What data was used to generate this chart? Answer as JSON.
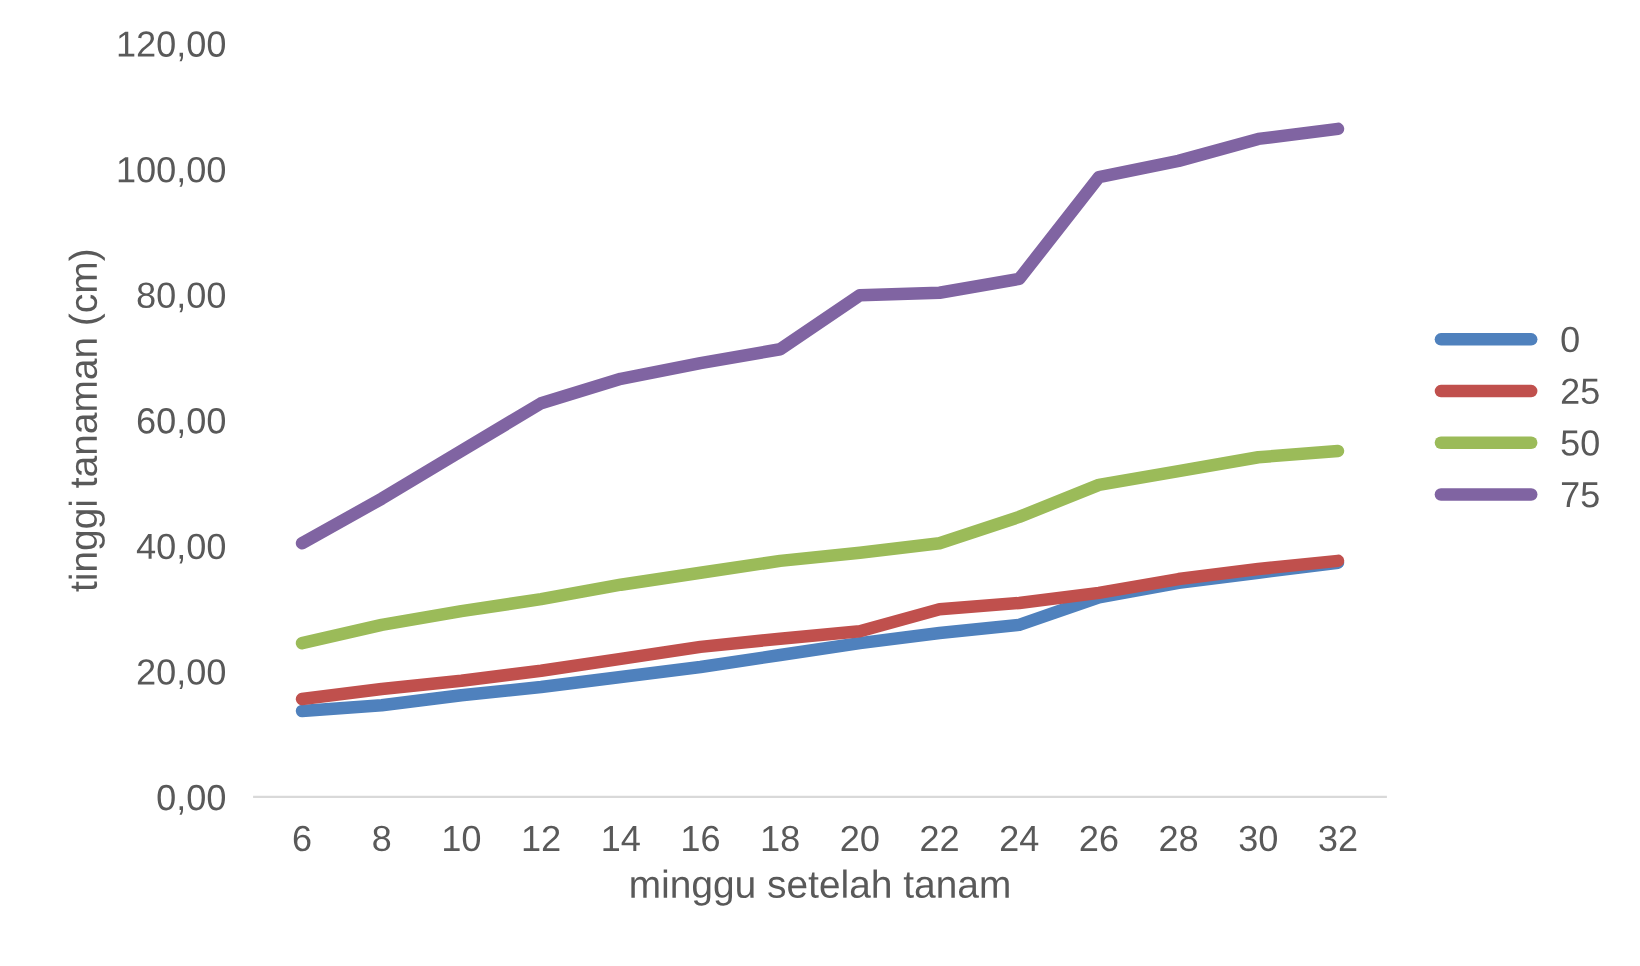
{
  "chart_data": {
    "type": "line",
    "xlabel": "minggu setelah tanam",
    "ylabel": "tinggi tanaman (cm)",
    "categories": [
      "6",
      "8",
      "10",
      "12",
      "14",
      "16",
      "18",
      "20",
      "22",
      "24",
      "26",
      "28",
      "30",
      "32"
    ],
    "series": [
      {
        "name": "0",
        "color": "#4f81bd",
        "values": [
          13.7,
          14.6,
          16.2,
          17.5,
          19.1,
          20.7,
          22.6,
          24.5,
          26.1,
          27.4,
          31.8,
          34.1,
          35.7,
          37.3
        ]
      },
      {
        "name": "25",
        "color": "#c0504d",
        "values": [
          15.6,
          17.2,
          18.5,
          20.1,
          22.0,
          23.9,
          25.2,
          26.4,
          29.9,
          30.9,
          32.5,
          34.7,
          36.3,
          37.6
        ]
      },
      {
        "name": "50",
        "color": "#9bbb59",
        "values": [
          24.5,
          27.4,
          29.6,
          31.5,
          33.8,
          35.7,
          37.6,
          38.9,
          40.4,
          44.6,
          49.7,
          51.9,
          54.1,
          55.1
        ]
      },
      {
        "name": "75",
        "color": "#8064a2",
        "values": [
          40.4,
          47.5,
          55.1,
          62.7,
          66.6,
          69.1,
          71.3,
          79.9,
          80.3,
          82.5,
          98.7,
          101.3,
          104.8,
          106.4
        ]
      }
    ],
    "ylim": [
      0,
      120
    ],
    "yticks": [
      {
        "value": 0,
        "label": "0,00"
      },
      {
        "value": 20,
        "label": "20,00"
      },
      {
        "value": 40,
        "label": "40,00"
      },
      {
        "value": 60,
        "label": "60,00"
      },
      {
        "value": 80,
        "label": "80,00"
      },
      {
        "value": 100,
        "label": "100,00"
      },
      {
        "value": 120,
        "label": "120,00"
      }
    ],
    "grid": false,
    "legend": "right",
    "marker": "none",
    "line_style": "solid"
  }
}
